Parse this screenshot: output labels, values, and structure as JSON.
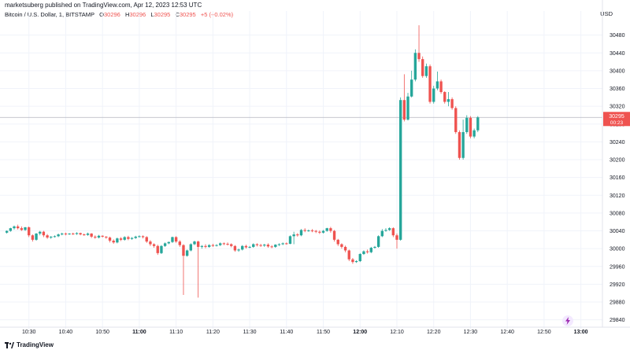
{
  "header": {
    "published": "marketsuberg published on TradingView.com, Apr 12, 2023 12:53 UTC"
  },
  "symbol": {
    "name": "Bitcoin / U.S. Dollar, 1, BITSTAMP",
    "o_label": "O",
    "o": "30296",
    "h_label": "H",
    "h": "30296",
    "l_label": "L",
    "l": "30295",
    "c_label": "C",
    "c": "30295",
    "change": "+5 (+0.02%)"
  },
  "currency": "USD",
  "branding": "TradingView",
  "colors": {
    "up": "#26a69a",
    "down": "#ef5350",
    "grid": "#f0f3fa",
    "axis_text": "#131722",
    "price_label_bg": "#ef5350"
  },
  "icons": {
    "scroll": "lightning-icon",
    "logo": "tradingview-logo-icon"
  },
  "chart_data": {
    "type": "candlestick",
    "title": "",
    "xlabel": "",
    "ylabel": "",
    "ylim": [
      29820,
      30520
    ],
    "y_ticks": [
      29840,
      29880,
      29920,
      29960,
      30000,
      30040,
      30080,
      30120,
      30160,
      30200,
      30240,
      30280,
      30320,
      30360,
      30400,
      30440,
      30480
    ],
    "y_tick_labels": [
      "29840",
      "29880",
      "29920",
      "29960",
      "30000",
      "30040",
      "30080",
      "30120",
      "30160",
      "30200",
      "30240",
      "30280",
      "30320",
      "30360",
      "30400",
      "30440",
      "30480"
    ],
    "x_ticks": [
      "10:30",
      "10:40",
      "10:50",
      "11:00",
      "11:10",
      "11:20",
      "11:30",
      "11:40",
      "11:50",
      "12:00",
      "12:10",
      "12:20",
      "12:30",
      "12:40",
      "12:50",
      "13:00"
    ],
    "x_range_minutes": [
      623,
      785
    ],
    "last_price": "30295",
    "countdown": "00:23",
    "grid": true,
    "candles": [
      {
        "t": 624,
        "o": 30036,
        "h": 30041,
        "c": 30040,
        "l": 30034
      },
      {
        "t": 625,
        "o": 30040,
        "h": 30047,
        "c": 30046,
        "l": 30038
      },
      {
        "t": 626,
        "o": 30046,
        "h": 30052,
        "c": 30050,
        "l": 30043
      },
      {
        "t": 627,
        "o": 30050,
        "h": 30054,
        "c": 30046,
        "l": 30043
      },
      {
        "t": 628,
        "o": 30046,
        "h": 30050,
        "c": 30042,
        "l": 30040
      },
      {
        "t": 629,
        "o": 30042,
        "h": 30049,
        "c": 30048,
        "l": 30040
      },
      {
        "t": 630,
        "o": 30048,
        "h": 30050,
        "c": 30030,
        "l": 30026
      },
      {
        "t": 631,
        "o": 30030,
        "h": 30032,
        "c": 30020,
        "l": 30016
      },
      {
        "t": 632,
        "o": 30020,
        "h": 30035,
        "c": 30034,
        "l": 30018
      },
      {
        "t": 633,
        "o": 30034,
        "h": 30040,
        "c": 30038,
        "l": 30030
      },
      {
        "t": 634,
        "o": 30038,
        "h": 30040,
        "c": 30030,
        "l": 30026
      },
      {
        "t": 635,
        "o": 30030,
        "h": 30033,
        "c": 30025,
        "l": 30022
      },
      {
        "t": 636,
        "o": 30025,
        "h": 30028,
        "c": 30027,
        "l": 30022
      },
      {
        "t": 637,
        "o": 30027,
        "h": 30030,
        "c": 30028,
        "l": 30025
      },
      {
        "t": 638,
        "o": 30028,
        "h": 30034,
        "c": 30032,
        "l": 30026
      },
      {
        "t": 639,
        "o": 30032,
        "h": 30036,
        "c": 30034,
        "l": 30030
      },
      {
        "t": 640,
        "o": 30034,
        "h": 30036,
        "c": 30033,
        "l": 30030
      },
      {
        "t": 641,
        "o": 30033,
        "h": 30035,
        "c": 30034,
        "l": 30031
      },
      {
        "t": 642,
        "o": 30034,
        "h": 30036,
        "c": 30033,
        "l": 30031
      },
      {
        "t": 643,
        "o": 30033,
        "h": 30037,
        "c": 30035,
        "l": 30031
      },
      {
        "t": 644,
        "o": 30035,
        "h": 30036,
        "c": 30032,
        "l": 30030
      },
      {
        "t": 645,
        "o": 30032,
        "h": 30034,
        "c": 30031,
        "l": 30029
      },
      {
        "t": 646,
        "o": 30031,
        "h": 30036,
        "c": 30034,
        "l": 30029
      },
      {
        "t": 647,
        "o": 30034,
        "h": 30035,
        "c": 30027,
        "l": 30024
      },
      {
        "t": 648,
        "o": 30027,
        "h": 30030,
        "c": 30025,
        "l": 30022
      },
      {
        "t": 649,
        "o": 30025,
        "h": 30031,
        "c": 30029,
        "l": 30023
      },
      {
        "t": 650,
        "o": 30029,
        "h": 30030,
        "c": 30027,
        "l": 30025
      },
      {
        "t": 651,
        "o": 30027,
        "h": 30028,
        "c": 30025,
        "l": 30022
      },
      {
        "t": 652,
        "o": 30025,
        "h": 30027,
        "c": 30018,
        "l": 30014
      },
      {
        "t": 653,
        "o": 30018,
        "h": 30021,
        "c": 30014,
        "l": 30011
      },
      {
        "t": 654,
        "o": 30014,
        "h": 30025,
        "c": 30023,
        "l": 30012
      },
      {
        "t": 655,
        "o": 30023,
        "h": 30026,
        "c": 30020,
        "l": 30017
      },
      {
        "t": 656,
        "o": 30020,
        "h": 30028,
        "c": 30026,
        "l": 30018
      },
      {
        "t": 657,
        "o": 30026,
        "h": 30029,
        "c": 30022,
        "l": 30019
      },
      {
        "t": 658,
        "o": 30022,
        "h": 30026,
        "c": 30024,
        "l": 30020
      },
      {
        "t": 659,
        "o": 30024,
        "h": 30029,
        "c": 30027,
        "l": 30022
      },
      {
        "t": 660,
        "o": 30027,
        "h": 30030,
        "c": 30028,
        "l": 30025
      },
      {
        "t": 661,
        "o": 30028,
        "h": 30030,
        "c": 30026,
        "l": 30023
      },
      {
        "t": 662,
        "o": 30026,
        "h": 30028,
        "c": 30016,
        "l": 30013
      },
      {
        "t": 663,
        "o": 30016,
        "h": 30019,
        "c": 30010,
        "l": 30006
      },
      {
        "t": 664,
        "o": 30010,
        "h": 30012,
        "c": 30006,
        "l": 30002
      },
      {
        "t": 665,
        "o": 30006,
        "h": 30009,
        "c": 29990,
        "l": 29986
      },
      {
        "t": 666,
        "o": 29990,
        "h": 30008,
        "c": 30006,
        "l": 29988
      },
      {
        "t": 667,
        "o": 30006,
        "h": 30014,
        "c": 30012,
        "l": 30004
      },
      {
        "t": 668,
        "o": 30012,
        "h": 30016,
        "c": 30015,
        "l": 30010
      },
      {
        "t": 669,
        "o": 30015,
        "h": 30027,
        "c": 30026,
        "l": 30013
      },
      {
        "t": 670,
        "o": 30026,
        "h": 30028,
        "c": 30016,
        "l": 30013
      },
      {
        "t": 671,
        "o": 30016,
        "h": 30019,
        "c": 30008,
        "l": 30004
      },
      {
        "t": 672,
        "o": 30008,
        "h": 30010,
        "c": 29984,
        "l": 29896
      },
      {
        "t": 673,
        "o": 29984,
        "h": 29998,
        "c": 29996,
        "l": 29982
      },
      {
        "t": 674,
        "o": 29996,
        "h": 30012,
        "c": 30010,
        "l": 29994
      },
      {
        "t": 675,
        "o": 30010,
        "h": 30018,
        "c": 30016,
        "l": 30008
      },
      {
        "t": 676,
        "o": 30016,
        "h": 30018,
        "c": 30004,
        "l": 29890
      },
      {
        "t": 677,
        "o": 30004,
        "h": 30008,
        "c": 30006,
        "l": 30000
      },
      {
        "t": 678,
        "o": 30006,
        "h": 30010,
        "c": 30004,
        "l": 30001
      },
      {
        "t": 679,
        "o": 30004,
        "h": 30010,
        "c": 30008,
        "l": 30002
      },
      {
        "t": 680,
        "o": 30008,
        "h": 30011,
        "c": 30007,
        "l": 30004
      },
      {
        "t": 681,
        "o": 30007,
        "h": 30010,
        "c": 30008,
        "l": 30005
      },
      {
        "t": 682,
        "o": 30008,
        "h": 30014,
        "c": 30012,
        "l": 30006
      },
      {
        "t": 683,
        "o": 30012,
        "h": 30014,
        "c": 30011,
        "l": 30008
      },
      {
        "t": 684,
        "o": 30011,
        "h": 30014,
        "c": 30010,
        "l": 30007
      },
      {
        "t": 685,
        "o": 30010,
        "h": 30012,
        "c": 30006,
        "l": 30003
      },
      {
        "t": 686,
        "o": 30006,
        "h": 30008,
        "c": 29996,
        "l": 29993
      },
      {
        "t": 687,
        "o": 29996,
        "h": 30000,
        "c": 29998,
        "l": 29993
      },
      {
        "t": 688,
        "o": 29998,
        "h": 30008,
        "c": 30006,
        "l": 29996
      },
      {
        "t": 689,
        "o": 30006,
        "h": 30009,
        "c": 30003,
        "l": 30000
      },
      {
        "t": 690,
        "o": 30003,
        "h": 30006,
        "c": 30004,
        "l": 30001
      },
      {
        "t": 691,
        "o": 30004,
        "h": 30012,
        "c": 30010,
        "l": 30002
      },
      {
        "t": 692,
        "o": 30010,
        "h": 30012,
        "c": 30008,
        "l": 30005
      },
      {
        "t": 693,
        "o": 30008,
        "h": 30011,
        "c": 30007,
        "l": 30004
      },
      {
        "t": 694,
        "o": 30007,
        "h": 30011,
        "c": 30009,
        "l": 30004
      },
      {
        "t": 695,
        "o": 30009,
        "h": 30012,
        "c": 30005,
        "l": 30002
      },
      {
        "t": 696,
        "o": 30005,
        "h": 30008,
        "c": 30004,
        "l": 30001
      },
      {
        "t": 697,
        "o": 30004,
        "h": 30010,
        "c": 30009,
        "l": 30002
      },
      {
        "t": 698,
        "o": 30009,
        "h": 30012,
        "c": 30010,
        "l": 30006
      },
      {
        "t": 699,
        "o": 30010,
        "h": 30014,
        "c": 30012,
        "l": 30008
      },
      {
        "t": 700,
        "o": 30012,
        "h": 30014,
        "c": 30011,
        "l": 30009
      },
      {
        "t": 701,
        "o": 30011,
        "h": 30030,
        "c": 30028,
        "l": 30010
      },
      {
        "t": 702,
        "o": 30028,
        "h": 30038,
        "c": 30032,
        "l": 30010
      },
      {
        "t": 703,
        "o": 30032,
        "h": 30035,
        "c": 30030,
        "l": 30027
      },
      {
        "t": 704,
        "o": 30030,
        "h": 30044,
        "c": 30042,
        "l": 30028
      },
      {
        "t": 705,
        "o": 30042,
        "h": 30046,
        "c": 30040,
        "l": 30037
      },
      {
        "t": 706,
        "o": 30040,
        "h": 30043,
        "c": 30041,
        "l": 30038
      },
      {
        "t": 707,
        "o": 30041,
        "h": 30044,
        "c": 30040,
        "l": 30037
      },
      {
        "t": 708,
        "o": 30040,
        "h": 30042,
        "c": 30038,
        "l": 30035
      },
      {
        "t": 709,
        "o": 30038,
        "h": 30041,
        "c": 30036,
        "l": 30033
      },
      {
        "t": 710,
        "o": 30036,
        "h": 30042,
        "c": 30040,
        "l": 30034
      },
      {
        "t": 711,
        "o": 30040,
        "h": 30047,
        "c": 30046,
        "l": 30038
      },
      {
        "t": 712,
        "o": 30046,
        "h": 30049,
        "c": 30040,
        "l": 30036
      },
      {
        "t": 713,
        "o": 30040,
        "h": 30042,
        "c": 30020,
        "l": 30016
      },
      {
        "t": 714,
        "o": 30020,
        "h": 30022,
        "c": 30010,
        "l": 30006
      },
      {
        "t": 715,
        "o": 30010,
        "h": 30012,
        "c": 30004,
        "l": 30000
      },
      {
        "t": 716,
        "o": 30004,
        "h": 30007,
        "c": 29996,
        "l": 29992
      },
      {
        "t": 717,
        "o": 29996,
        "h": 29998,
        "c": 29976,
        "l": 29972
      },
      {
        "t": 718,
        "o": 29976,
        "h": 29979,
        "c": 29970,
        "l": 29966
      },
      {
        "t": 719,
        "o": 29970,
        "h": 29974,
        "c": 29972,
        "l": 29968
      },
      {
        "t": 720,
        "o": 29972,
        "h": 29990,
        "c": 29988,
        "l": 29970
      },
      {
        "t": 721,
        "o": 29988,
        "h": 29996,
        "c": 29994,
        "l": 29986
      },
      {
        "t": 722,
        "o": 29994,
        "h": 29998,
        "c": 29992,
        "l": 29989
      },
      {
        "t": 723,
        "o": 29992,
        "h": 30004,
        "c": 30002,
        "l": 29990
      },
      {
        "t": 724,
        "o": 30002,
        "h": 30006,
        "c": 30004,
        "l": 30000
      },
      {
        "t": 725,
        "o": 30004,
        "h": 30030,
        "c": 30028,
        "l": 30002
      },
      {
        "t": 726,
        "o": 30028,
        "h": 30044,
        "c": 30040,
        "l": 30026
      },
      {
        "t": 727,
        "o": 30040,
        "h": 30046,
        "c": 30042,
        "l": 30038
      },
      {
        "t": 728,
        "o": 30042,
        "h": 30048,
        "c": 30046,
        "l": 30040
      },
      {
        "t": 729,
        "o": 30046,
        "h": 30048,
        "c": 30030,
        "l": 30026
      },
      {
        "t": 730,
        "o": 30030,
        "h": 30034,
        "c": 30020,
        "l": 30000
      },
      {
        "t": 731,
        "o": 30020,
        "h": 30340,
        "c": 30334,
        "l": 30018
      },
      {
        "t": 732,
        "o": 30334,
        "h": 30392,
        "c": 30290,
        "l": 30286
      },
      {
        "t": 733,
        "o": 30290,
        "h": 30350,
        "c": 30342,
        "l": 30288
      },
      {
        "t": 734,
        "o": 30342,
        "h": 30400,
        "c": 30380,
        "l": 30340
      },
      {
        "t": 735,
        "o": 30380,
        "h": 30448,
        "c": 30440,
        "l": 30376
      },
      {
        "t": 736,
        "o": 30440,
        "h": 30502,
        "c": 30426,
        "l": 30420
      },
      {
        "t": 737,
        "o": 30426,
        "h": 30432,
        "c": 30388,
        "l": 30384
      },
      {
        "t": 738,
        "o": 30388,
        "h": 30416,
        "c": 30410,
        "l": 30384
      },
      {
        "t": 739,
        "o": 30410,
        "h": 30414,
        "c": 30330,
        "l": 30326
      },
      {
        "t": 740,
        "o": 30330,
        "h": 30366,
        "c": 30360,
        "l": 30326
      },
      {
        "t": 741,
        "o": 30360,
        "h": 30398,
        "c": 30376,
        "l": 30356
      },
      {
        "t": 742,
        "o": 30376,
        "h": 30380,
        "c": 30352,
        "l": 30348
      },
      {
        "t": 743,
        "o": 30352,
        "h": 30354,
        "c": 30330,
        "l": 30326
      },
      {
        "t": 744,
        "o": 30330,
        "h": 30352,
        "c": 30336,
        "l": 30320
      },
      {
        "t": 745,
        "o": 30336,
        "h": 30340,
        "c": 30316,
        "l": 30312
      },
      {
        "t": 746,
        "o": 30316,
        "h": 30320,
        "c": 30262,
        "l": 30258
      },
      {
        "t": 747,
        "o": 30262,
        "h": 30266,
        "c": 30204,
        "l": 30200
      },
      {
        "t": 748,
        "o": 30204,
        "h": 30290,
        "c": 30262,
        "l": 30200
      },
      {
        "t": 749,
        "o": 30262,
        "h": 30300,
        "c": 30294,
        "l": 30258
      },
      {
        "t": 750,
        "o": 30294,
        "h": 30298,
        "c": 30252,
        "l": 30248
      },
      {
        "t": 751,
        "o": 30252,
        "h": 30270,
        "c": 30266,
        "l": 30248
      },
      {
        "t": 752,
        "o": 30266,
        "h": 30298,
        "c": 30295,
        "l": 30262
      }
    ]
  }
}
